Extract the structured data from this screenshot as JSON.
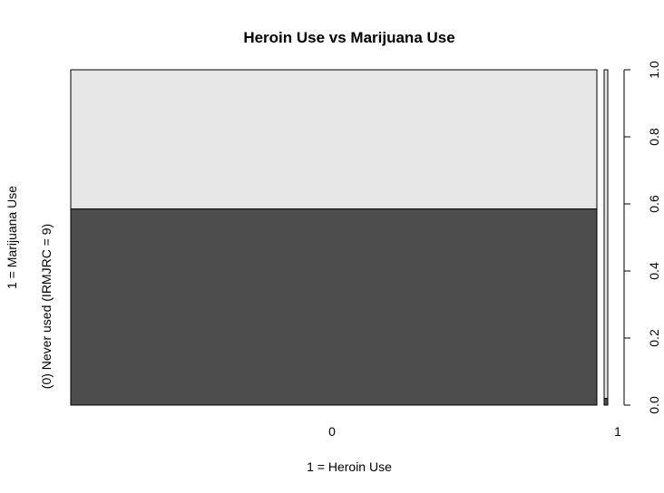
{
  "chart_data": {
    "type": "spineplot",
    "title": "Heroin Use vs Marijuana Use",
    "xlabel": "1 = Heroin Use",
    "ylabel": "1 = Marijuana Use",
    "x_categories": [
      "0",
      "1"
    ],
    "x_widths": [
      0.9995,
      0.0005
    ],
    "y_levels": [
      {
        "label": "(0) Never used (IRMJRC = 9)",
        "color": "#4d4d4d"
      },
      {
        "label": "",
        "color": "#e6e6e6"
      }
    ],
    "proportions_by_x": [
      [
        0.585,
        0.415
      ],
      [
        0.02,
        0.98
      ]
    ],
    "right_axis": {
      "ticks": [
        0.0,
        0.2,
        0.4,
        0.6,
        0.8,
        1.0
      ],
      "tick_labels": [
        "0.0",
        "0.2",
        "0.4",
        "0.6",
        "0.8",
        "1.0"
      ],
      "ylim": [
        0,
        1
      ]
    }
  }
}
